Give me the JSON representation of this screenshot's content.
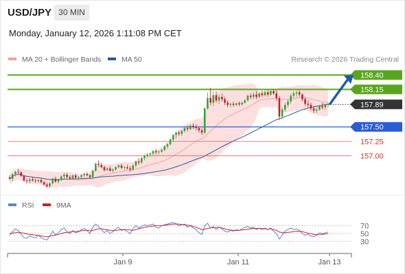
{
  "header": {
    "symbol": "USD/JPY",
    "interval": "30 MIN",
    "datetime": "Monday, January 12, 2026 1:11:08 PM CET"
  },
  "chart_data": [
    {
      "type": "candlestick",
      "legend": [
        {
          "name": "MA 20 + Bollinger Bands",
          "color": "#f4a0a0"
        },
        {
          "name": "MA 50",
          "color": "#2c5896"
        }
      ],
      "credit": "Research © 2026 Trading Central",
      "y_range": [
        156.35,
        158.56
      ],
      "x_ticks": [
        "Jan 9",
        "Jan 11",
        "Jan 13"
      ],
      "colors": {
        "up": "#3aa037",
        "down": "#c0202a",
        "resistance": "#5aa51e",
        "pivot": "#2a5cd6",
        "support": "#e06060",
        "arrow": "#1f5aa8"
      },
      "levels": [
        {
          "value": "158.40",
          "kind": "resistance",
          "style": "box"
        },
        {
          "value": "158.15",
          "kind": "resistance",
          "style": "box"
        },
        {
          "value": "157.89",
          "kind": "last",
          "style": "box-dark"
        },
        {
          "value": "157.50",
          "kind": "pivot",
          "style": "box"
        },
        {
          "value": "157.25",
          "kind": "support",
          "style": "text"
        },
        {
          "value": "157.00",
          "kind": "support",
          "style": "text"
        }
      ],
      "candles_ohlc": [
        [
          156.62,
          156.66,
          156.58,
          156.6
        ],
        [
          156.6,
          156.7,
          156.56,
          156.68
        ],
        [
          156.68,
          156.74,
          156.64,
          156.72
        ],
        [
          156.72,
          156.77,
          156.68,
          156.71
        ],
        [
          156.71,
          156.73,
          156.63,
          156.65
        ],
        [
          156.65,
          156.66,
          156.55,
          156.57
        ],
        [
          156.57,
          156.6,
          156.52,
          156.56
        ],
        [
          156.56,
          156.61,
          156.52,
          156.59
        ],
        [
          156.59,
          156.63,
          156.55,
          156.57
        ],
        [
          156.57,
          156.6,
          156.53,
          156.56
        ],
        [
          156.56,
          156.59,
          156.53,
          156.58
        ],
        [
          156.58,
          156.6,
          156.52,
          156.54
        ],
        [
          156.54,
          156.56,
          156.48,
          156.5
        ],
        [
          156.5,
          156.53,
          156.44,
          156.47
        ],
        [
          156.47,
          156.54,
          156.44,
          156.52
        ],
        [
          156.52,
          156.62,
          156.5,
          156.6
        ],
        [
          156.6,
          156.64,
          156.53,
          156.55
        ],
        [
          156.55,
          156.6,
          156.52,
          156.58
        ],
        [
          156.58,
          156.66,
          156.56,
          156.64
        ],
        [
          156.64,
          156.7,
          156.6,
          156.67
        ],
        [
          156.67,
          156.7,
          156.61,
          156.63
        ],
        [
          156.63,
          156.66,
          156.58,
          156.61
        ],
        [
          156.61,
          156.67,
          156.6,
          156.66
        ],
        [
          156.66,
          156.69,
          156.6,
          156.62
        ],
        [
          156.62,
          156.65,
          156.59,
          156.63
        ],
        [
          156.63,
          156.68,
          156.6,
          156.66
        ],
        [
          156.66,
          156.7,
          156.63,
          156.68
        ],
        [
          156.68,
          156.71,
          156.64,
          156.66
        ],
        [
          156.66,
          156.68,
          156.61,
          156.63
        ],
        [
          156.63,
          156.76,
          156.61,
          156.74
        ],
        [
          156.74,
          156.88,
          156.72,
          156.86
        ],
        [
          156.86,
          156.92,
          156.8,
          156.84
        ],
        [
          156.84,
          156.88,
          156.78,
          156.8
        ],
        [
          156.8,
          156.83,
          156.72,
          156.75
        ],
        [
          156.75,
          156.8,
          156.73,
          156.78
        ],
        [
          156.78,
          156.82,
          156.72,
          156.74
        ],
        [
          156.74,
          156.78,
          156.71,
          156.76
        ],
        [
          156.76,
          156.82,
          156.74,
          156.8
        ],
        [
          156.8,
          156.85,
          156.78,
          156.83
        ],
        [
          156.83,
          156.86,
          156.77,
          156.79
        ],
        [
          156.79,
          156.82,
          156.75,
          156.8
        ],
        [
          156.8,
          156.84,
          156.76,
          156.78
        ],
        [
          156.78,
          156.82,
          156.72,
          156.76
        ],
        [
          156.76,
          156.85,
          156.74,
          156.83
        ],
        [
          156.83,
          156.92,
          156.8,
          156.9
        ],
        [
          156.9,
          156.96,
          156.84,
          156.88
        ],
        [
          156.88,
          156.98,
          156.86,
          156.96
        ],
        [
          156.96,
          157.02,
          156.92,
          157.0
        ],
        [
          157.0,
          157.05,
          156.96,
          157.02
        ],
        [
          157.02,
          157.06,
          156.98,
          157.04
        ],
        [
          157.04,
          157.1,
          157.0,
          157.08
        ],
        [
          157.08,
          157.12,
          157.02,
          157.06
        ],
        [
          157.06,
          157.09,
          157.02,
          157.07
        ],
        [
          157.07,
          157.12,
          157.05,
          157.1
        ],
        [
          157.1,
          157.18,
          157.08,
          157.16
        ],
        [
          157.16,
          157.22,
          157.12,
          157.2
        ],
        [
          157.2,
          157.3,
          157.18,
          157.28
        ],
        [
          157.28,
          157.38,
          157.24,
          157.36
        ],
        [
          157.36,
          157.42,
          157.3,
          157.4
        ],
        [
          157.4,
          157.44,
          157.34,
          157.38
        ],
        [
          157.38,
          157.45,
          157.35,
          157.43
        ],
        [
          157.43,
          157.5,
          157.4,
          157.48
        ],
        [
          157.48,
          157.52,
          157.42,
          157.46
        ],
        [
          157.46,
          157.54,
          157.44,
          157.52
        ],
        [
          157.52,
          157.56,
          157.46,
          157.5
        ],
        [
          157.5,
          157.54,
          157.44,
          157.48
        ],
        [
          157.48,
          157.5,
          157.4,
          157.44
        ],
        [
          157.44,
          157.48,
          157.36,
          157.4
        ],
        [
          157.4,
          157.84,
          157.38,
          157.82
        ],
        [
          157.82,
          158.1,
          157.8,
          158.0
        ],
        [
          158.0,
          158.18,
          157.88,
          157.92
        ],
        [
          157.92,
          158.12,
          157.86,
          158.05
        ],
        [
          158.05,
          158.12,
          157.92,
          157.96
        ],
        [
          157.96,
          158.06,
          157.9,
          158.02
        ],
        [
          158.02,
          158.08,
          157.94,
          157.98
        ],
        [
          157.98,
          158.02,
          157.88,
          157.92
        ],
        [
          157.92,
          157.96,
          157.84,
          157.88
        ],
        [
          157.88,
          157.92,
          157.84,
          157.9
        ],
        [
          157.9,
          157.94,
          157.85,
          157.88
        ],
        [
          157.88,
          157.92,
          157.86,
          157.91
        ],
        [
          157.91,
          157.94,
          157.86,
          157.89
        ],
        [
          157.89,
          157.94,
          157.87,
          157.92
        ],
        [
          157.92,
          157.98,
          157.9,
          157.96
        ],
        [
          157.96,
          158.06,
          157.94,
          158.04
        ],
        [
          158.04,
          158.08,
          157.98,
          158.02
        ],
        [
          158.02,
          158.1,
          157.98,
          158.06
        ],
        [
          158.06,
          158.12,
          157.98,
          158.02
        ],
        [
          158.02,
          158.1,
          158.0,
          158.08
        ],
        [
          158.08,
          158.13,
          158.02,
          158.05
        ],
        [
          158.05,
          158.14,
          158.03,
          158.1
        ],
        [
          158.1,
          158.14,
          158.02,
          158.06
        ],
        [
          158.06,
          158.14,
          158.04,
          158.12
        ],
        [
          158.12,
          158.16,
          158.06,
          158.08
        ],
        [
          158.08,
          158.14,
          157.95,
          158.0
        ],
        [
          158.0,
          158.04,
          157.62,
          157.68
        ],
        [
          157.68,
          157.84,
          157.64,
          157.8
        ],
        [
          157.8,
          157.92,
          157.76,
          157.88
        ],
        [
          157.88,
          157.98,
          157.84,
          157.94
        ],
        [
          157.94,
          158.08,
          157.9,
          158.04
        ],
        [
          158.04,
          158.12,
          158.0,
          158.08
        ],
        [
          158.08,
          158.13,
          158.02,
          158.1
        ],
        [
          158.1,
          158.14,
          158.02,
          158.06
        ],
        [
          158.06,
          158.08,
          157.94,
          157.98
        ],
        [
          157.98,
          158.02,
          157.86,
          157.9
        ],
        [
          157.9,
          157.96,
          157.84,
          157.88
        ],
        [
          157.88,
          157.92,
          157.78,
          157.82
        ],
        [
          157.82,
          157.86,
          157.74,
          157.78
        ],
        [
          157.78,
          157.84,
          157.74,
          157.8
        ],
        [
          157.8,
          157.88,
          157.78,
          157.86
        ],
        [
          157.86,
          157.92,
          157.8,
          157.84
        ],
        [
          157.84,
          157.9,
          157.8,
          157.88
        ],
        [
          157.88,
          157.92,
          157.84,
          157.89
        ]
      ],
      "forecast_path": [
        157.89,
        158.4
      ]
    },
    {
      "type": "line",
      "legend": [
        {
          "name": "RSI",
          "color": "#5a84d6"
        },
        {
          "name": "9MA",
          "color": "#d02020"
        }
      ],
      "y_range": [
        0,
        100
      ],
      "y_ticks": [
        70,
        50,
        30
      ],
      "series": [
        {
          "name": "RSI",
          "values": [
            45,
            55,
            62,
            58,
            48,
            40,
            38,
            44,
            41,
            39,
            46,
            40,
            36,
            34,
            44,
            56,
            47,
            52,
            60,
            64,
            55,
            50,
            58,
            52,
            54,
            60,
            63,
            57,
            50,
            66,
            74,
            68,
            60,
            52,
            58,
            50,
            55,
            62,
            66,
            58,
            60,
            55,
            50,
            62,
            70,
            64,
            68,
            72,
            70,
            72,
            74,
            66,
            64,
            70,
            72,
            74,
            76,
            78,
            75,
            70,
            72,
            74,
            66,
            70,
            64,
            60,
            52,
            48,
            70,
            76,
            64,
            68,
            60,
            66,
            62,
            56,
            54,
            58,
            56,
            60,
            58,
            62,
            66,
            68,
            64,
            66,
            60,
            64,
            60,
            64,
            60,
            64,
            56,
            50,
            36,
            46,
            56,
            60,
            64,
            60,
            62,
            58,
            50,
            46,
            48,
            44,
            42,
            46,
            52,
            50,
            52,
            54
          ]
        },
        {
          "name": "9MA",
          "values": [
            50,
            51,
            52,
            53,
            52,
            51,
            49,
            48,
            47,
            46,
            45,
            44,
            43,
            42,
            43,
            45,
            46,
            48,
            50,
            52,
            53,
            54,
            55,
            55,
            56,
            57,
            58,
            58,
            57,
            58,
            60,
            62,
            62,
            61,
            60,
            58,
            57,
            58,
            59,
            60,
            60,
            60,
            59,
            58,
            60,
            62,
            64,
            66,
            67,
            68,
            69,
            70,
            70,
            70,
            71,
            72,
            73,
            74,
            74,
            74,
            73,
            72,
            71,
            70,
            68,
            66,
            63,
            60,
            61,
            63,
            64,
            65,
            65,
            66,
            64,
            62,
            60,
            59,
            58,
            58,
            58,
            59,
            60,
            61,
            62,
            63,
            63,
            63,
            63,
            62,
            61,
            62,
            60,
            58,
            54,
            52,
            52,
            53,
            54,
            55,
            56,
            56,
            55,
            53,
            51,
            50,
            48,
            47,
            48,
            48,
            49,
            50
          ]
        }
      ]
    }
  ]
}
